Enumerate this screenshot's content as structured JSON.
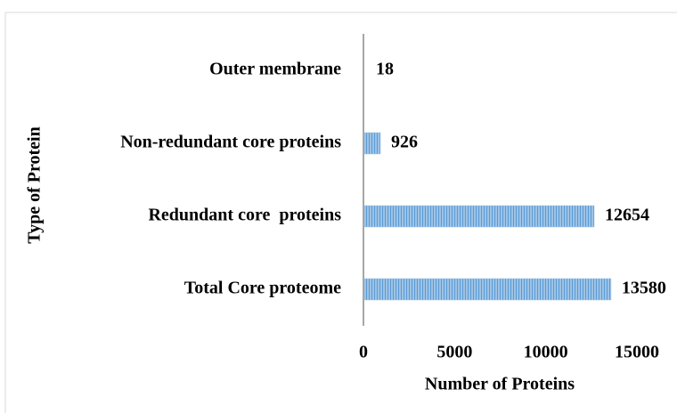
{
  "chart_data": {
    "type": "bar",
    "orientation": "horizontal",
    "x_label": "Number of Proteins",
    "y_label": "Type of Protein",
    "categories": [
      "Outer membrane",
      "Non-redundant core proteins",
      "Redundant core  proteins",
      "Total Core proteome"
    ],
    "values": [
      18,
      926,
      12654,
      13580
    ],
    "color": "#9dc3e6",
    "xlim": [
      0,
      15000
    ],
    "xticks": [
      0,
      5000,
      10000,
      15000
    ],
    "grid": false
  }
}
